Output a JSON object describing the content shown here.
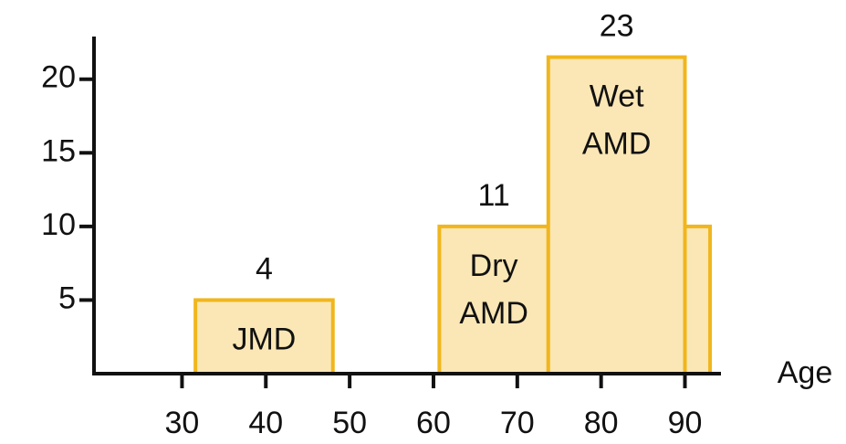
{
  "chart_data": {
    "type": "bar",
    "x_label": "Age",
    "xlim": [
      19.5,
      94.3
    ],
    "ylim": [
      0,
      22.9
    ],
    "xticks": [
      30,
      40,
      50,
      60,
      70,
      80,
      90
    ],
    "yticks": [
      5,
      10,
      15,
      20
    ],
    "fill": "#fbe7b5",
    "color": "#f0b61d",
    "bars": [
      {
        "x": [
          31.6,
          48
        ],
        "value": 5,
        "name": [
          "JMD"
        ],
        "count": 4
      },
      {
        "x": [
          60.7,
          73.7
        ],
        "value": 10,
        "name": [
          "Dry",
          "AMD"
        ],
        "count": 11
      },
      {
        "x": [
          73.7,
          90
        ],
        "value": 21.5,
        "name": [
          "Wet",
          "AMD"
        ],
        "count": 23
      },
      {
        "x": [
          90,
          93
        ],
        "value": 10
      }
    ]
  }
}
